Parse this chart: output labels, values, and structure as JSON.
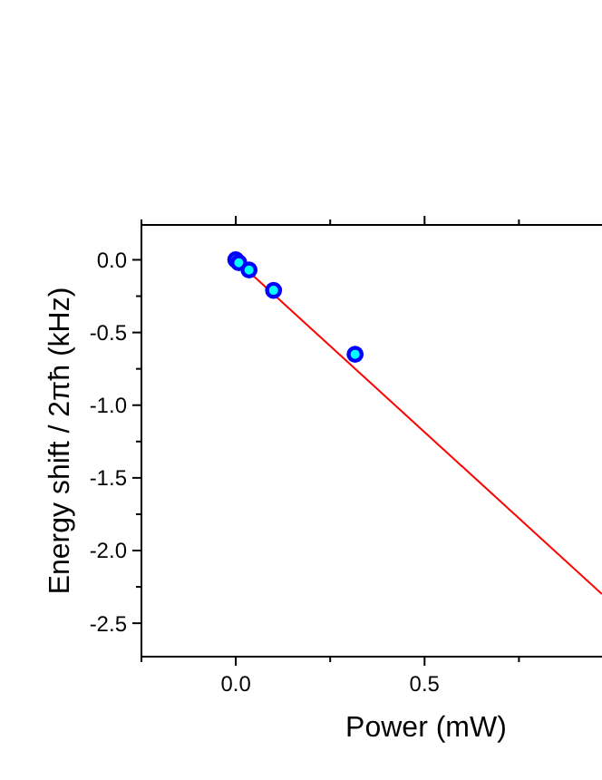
{
  "chart_data": {
    "type": "scatter",
    "xlabel": "Power (mW)",
    "ylabel": "Energy shift / 2πħ (kHz)",
    "xlim": [
      -0.25,
      0.97
    ],
    "ylim": [
      -2.73,
      0.24
    ],
    "xticks": [
      {
        "value": -0.25,
        "label": null
      },
      {
        "value": 0,
        "label": "0.0"
      },
      {
        "value": 0.25,
        "label": null
      },
      {
        "value": 0.5,
        "label": "0.5"
      },
      {
        "value": 0.75,
        "label": null
      }
    ],
    "yticks": [
      {
        "value": 0,
        "label": "0.0"
      },
      {
        "value": -0.25,
        "label": null
      },
      {
        "value": -0.5,
        "label": "-0.5"
      },
      {
        "value": -0.75,
        "label": null
      },
      {
        "value": -1,
        "label": "-1.0"
      },
      {
        "value": -1.25,
        "label": null
      },
      {
        "value": -1.5,
        "label": "-1.5"
      },
      {
        "value": -1.75,
        "label": null
      },
      {
        "value": -2,
        "label": "-2.0"
      },
      {
        "value": -2.25,
        "label": null
      },
      {
        "value": -2.5,
        "label": "-2.5"
      }
    ],
    "grid": false,
    "series": [
      {
        "type": "line",
        "color": "#ff0000",
        "x": [
          0,
          0.97
        ],
        "values": [
          0,
          -2.3
        ]
      },
      {
        "marker": "circle",
        "color": "#0000ff",
        "x": [
          0,
          0.008,
          0.035,
          0.1,
          0.316
        ],
        "values": [
          0,
          -0.02,
          -0.07,
          -0.21,
          -0.65
        ]
      }
    ]
  }
}
